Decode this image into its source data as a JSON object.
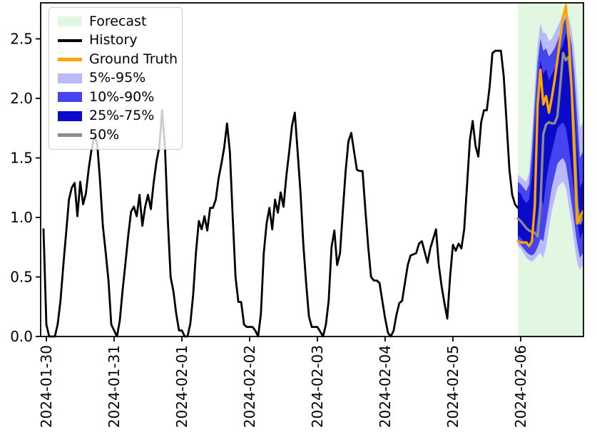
{
  "figure": {
    "background": "#ffffff"
  },
  "legend": {
    "items": [
      {
        "label": "Forecast",
        "swatch": "patch",
        "color": "#e1f7e1"
      },
      {
        "label": "History",
        "swatch": "line",
        "color": "#000000"
      },
      {
        "label": "Ground Truth",
        "swatch": "line",
        "color": "#ffa500"
      },
      {
        "label": "5%-95%",
        "swatch": "patch",
        "color": "#b9b9fb"
      },
      {
        "label": "10%-90%",
        "swatch": "patch",
        "color": "#4545f0"
      },
      {
        "label": "25%-75%",
        "swatch": "patch",
        "color": "#0a0ac8"
      },
      {
        "label": "50%",
        "swatch": "line",
        "color": "#8c8c8c"
      }
    ]
  },
  "chart_data": {
    "type": "line",
    "title": "",
    "xlabel": "",
    "ylabel": "",
    "x_axis": {
      "unit": "hours since 2024-01-30 00:00",
      "tick_hours": [
        0,
        24,
        48,
        72,
        96,
        120,
        144,
        168
      ],
      "tick_labels": [
        "2024-01-30",
        "2024-01-31",
        "2024-02-01",
        "2024-02-02",
        "2024-02-03",
        "2024-02-04",
        "2024-02-05",
        "2024-02-06"
      ],
      "lim_hours": [
        -2,
        190.2
      ]
    },
    "y_axis": {
      "tick_values": [
        0.0,
        0.5,
        1.0,
        1.5,
        2.0,
        2.5
      ],
      "tick_labels": [
        "0.0",
        "0.5",
        "1.0",
        "1.5",
        "2.0",
        "2.5"
      ],
      "lim": [
        0,
        2.8
      ],
      "grid": false
    },
    "legend_position": "upper left",
    "history": {
      "label": "History",
      "color": "#000000",
      "t_start_hours": -1,
      "step_hours": 1,
      "values": [
        0.9,
        0.1,
        0.0,
        0.0,
        0.0,
        0.1,
        0.3,
        0.6,
        0.87,
        1.15,
        1.25,
        1.29,
        1.01,
        1.3,
        1.11,
        1.2,
        1.41,
        1.57,
        1.68,
        1.62,
        1.31,
        0.93,
        0.71,
        0.47,
        0.1,
        0.05,
        0.0,
        0.13,
        0.39,
        0.61,
        0.85,
        1.05,
        1.09,
        1.01,
        1.19,
        0.93,
        1.09,
        1.19,
        1.07,
        1.29,
        1.47,
        1.59,
        1.9,
        1.59,
        0.99,
        0.5,
        0.38,
        0.19,
        0.05,
        0.05,
        0.0,
        0.0,
        0.11,
        0.35,
        0.71,
        0.97,
        0.9,
        1.01,
        0.89,
        1.08,
        1.08,
        1.15,
        1.33,
        1.45,
        1.59,
        1.79,
        1.55,
        1.0,
        0.5,
        0.29,
        0.29,
        0.1,
        0.08,
        0.08,
        0.08,
        0.05,
        0.0,
        0.19,
        0.7,
        0.95,
        1.08,
        0.9,
        1.15,
        1.04,
        1.21,
        1.09,
        1.35,
        1.55,
        1.77,
        1.88,
        1.55,
        1.21,
        0.78,
        0.45,
        0.17,
        0.08,
        0.08,
        0.08,
        0.04,
        0.0,
        0.1,
        0.3,
        0.75,
        0.89,
        0.6,
        0.7,
        1.05,
        1.39,
        1.64,
        1.71,
        1.55,
        1.4,
        1.39,
        1.39,
        1.06,
        0.75,
        0.5,
        0.47,
        0.47,
        0.45,
        0.3,
        0.15,
        0.03,
        0.0,
        0.05,
        0.18,
        0.28,
        0.3,
        0.45,
        0.6,
        0.68,
        0.69,
        0.7,
        0.78,
        0.8,
        0.71,
        0.62,
        0.74,
        0.82,
        0.9,
        0.6,
        0.42,
        0.28,
        0.15,
        0.5,
        0.77,
        0.72,
        0.78,
        0.74,
        0.9,
        1.27,
        1.65,
        1.81,
        1.6,
        1.51,
        1.8,
        1.9,
        1.9,
        2.1,
        2.38,
        2.4,
        2.4,
        2.4,
        2.18,
        1.8,
        1.4,
        1.19,
        1.11,
        1.08
      ]
    },
    "forecast": {
      "region": {
        "label": "Forecast",
        "color": "#e1f7e1",
        "t_start_hours": 167,
        "t_end_hours": 190.2
      },
      "t_start_hours": 167,
      "step_hours": 1,
      "ground_truth": {
        "label": "Ground Truth",
        "color": "#ffa500",
        "values": [
          0.8,
          0.79,
          0.79,
          0.79,
          0.76,
          0.8,
          1.1,
          1.95,
          2.24,
          1.95,
          2.02,
          1.88,
          2.0,
          2.15,
          2.32,
          2.5,
          2.68,
          2.78,
          2.5,
          2.1,
          1.5,
          0.95,
          1.0,
          1.05
        ]
      },
      "median": {
        "label": "50%",
        "color": "#8c8c8c",
        "values": [
          0.99,
          0.97,
          0.94,
          0.91,
          0.89,
          0.88,
          0.87,
          0.84,
          1.1,
          1.7,
          1.78,
          1.8,
          1.79,
          1.79,
          1.85,
          2.1,
          2.38,
          2.32,
          2.35,
          2.1,
          1.7,
          1.1,
          0.95,
          1.0
        ]
      },
      "bands": [
        {
          "label": "5%-95%",
          "color": "#b9b9fb",
          "lower": [
            0.76,
            0.74,
            0.7,
            0.66,
            0.64,
            0.63,
            0.65,
            0.68,
            0.7,
            0.66,
            0.75,
            0.9,
            1.05,
            1.15,
            1.25,
            1.28,
            1.3,
            1.25,
            1.1,
            0.95,
            0.78,
            0.62,
            0.56,
            0.6
          ],
          "upper": [
            1.36,
            1.34,
            1.32,
            1.3,
            1.38,
            1.7,
            2.1,
            2.45,
            2.63,
            2.55,
            2.55,
            2.48,
            2.5,
            2.55,
            2.6,
            2.65,
            2.72,
            2.75,
            2.68,
            2.58,
            2.4,
            2.1,
            1.75,
            1.8
          ]
        },
        {
          "label": "10%-90%",
          "color": "#4545f0",
          "lower": [
            0.79,
            0.77,
            0.74,
            0.71,
            0.69,
            0.68,
            0.7,
            0.75,
            0.82,
            0.8,
            0.95,
            1.1,
            1.25,
            1.35,
            1.45,
            1.48,
            1.5,
            1.45,
            1.3,
            1.12,
            0.95,
            0.78,
            0.66,
            0.7
          ],
          "upper": [
            1.3,
            1.28,
            1.25,
            1.22,
            1.28,
            1.55,
            1.95,
            2.3,
            2.5,
            2.4,
            2.42,
            2.35,
            2.38,
            2.42,
            2.48,
            2.55,
            2.62,
            2.68,
            2.58,
            2.45,
            2.2,
            1.85,
            1.5,
            1.55
          ]
        },
        {
          "label": "25%-75%",
          "color": "#0a0ac8",
          "lower": [
            0.85,
            0.83,
            0.8,
            0.78,
            0.76,
            0.78,
            0.85,
            1.0,
            1.2,
            1.1,
            1.3,
            1.45,
            1.55,
            1.65,
            1.75,
            1.78,
            1.8,
            1.75,
            1.6,
            1.4,
            1.2,
            1.0,
            0.82,
            0.88
          ],
          "upper": [
            1.22,
            1.2,
            1.15,
            1.12,
            1.15,
            1.35,
            1.75,
            2.1,
            2.32,
            2.2,
            2.25,
            2.15,
            2.2,
            2.25,
            2.3,
            2.4,
            2.45,
            2.55,
            2.45,
            2.3,
            2.0,
            1.6,
            1.25,
            1.3
          ]
        }
      ]
    }
  }
}
